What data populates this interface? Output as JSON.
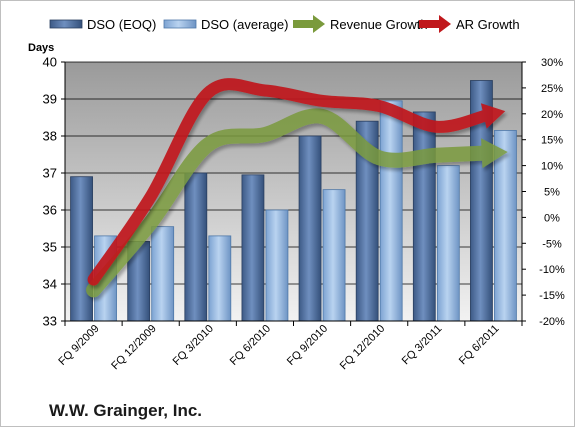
{
  "chart_data": {
    "type": "bar",
    "title": "W.W. Grainger, Inc.",
    "categories": [
      "FQ 9/2009",
      "FQ 12/2009",
      "FQ 3/2010",
      "FQ 6/2010",
      "FQ 9/2010",
      "FQ 12/2010",
      "FQ 3/2011",
      "FQ 6/2011"
    ],
    "series": [
      {
        "name": "DSO (EOQ)",
        "type": "bar",
        "axis": "left",
        "color": "#4f6f9f",
        "values": [
          36.9,
          35.15,
          37.0,
          36.95,
          38.0,
          38.4,
          38.65,
          39.5
        ]
      },
      {
        "name": "DSO (average)",
        "type": "bar",
        "axis": "left",
        "color": "#8fb4e0",
        "values": [
          35.3,
          35.55,
          35.3,
          36.0,
          36.55,
          38.95,
          37.2,
          38.15
        ]
      },
      {
        "name": "Revenue Growth",
        "type": "line-arrow",
        "axis": "right",
        "color": "#7a9a3c",
        "values": [
          -14,
          -1,
          14,
          16,
          19.5,
          11.5,
          12,
          12.5
        ]
      },
      {
        "name": "AR Growth",
        "type": "line-arrow",
        "axis": "right",
        "color": "#c0181c",
        "values": [
          -12,
          4,
          24,
          24.5,
          22.5,
          21.5,
          17.5,
          20
        ]
      }
    ],
    "ylabel": "Days",
    "ylim": [
      33,
      40
    ],
    "yticks": [
      "33",
      "34",
      "35",
      "36",
      "37",
      "38",
      "39",
      "40"
    ],
    "y2lim": [
      -20,
      30
    ],
    "y2ticks": [
      "-20%",
      "-15%",
      "-10%",
      "-5%",
      "0%",
      "5%",
      "10%",
      "15%",
      "20%",
      "25%",
      "30%"
    ],
    "grid": true,
    "legend": "top"
  }
}
